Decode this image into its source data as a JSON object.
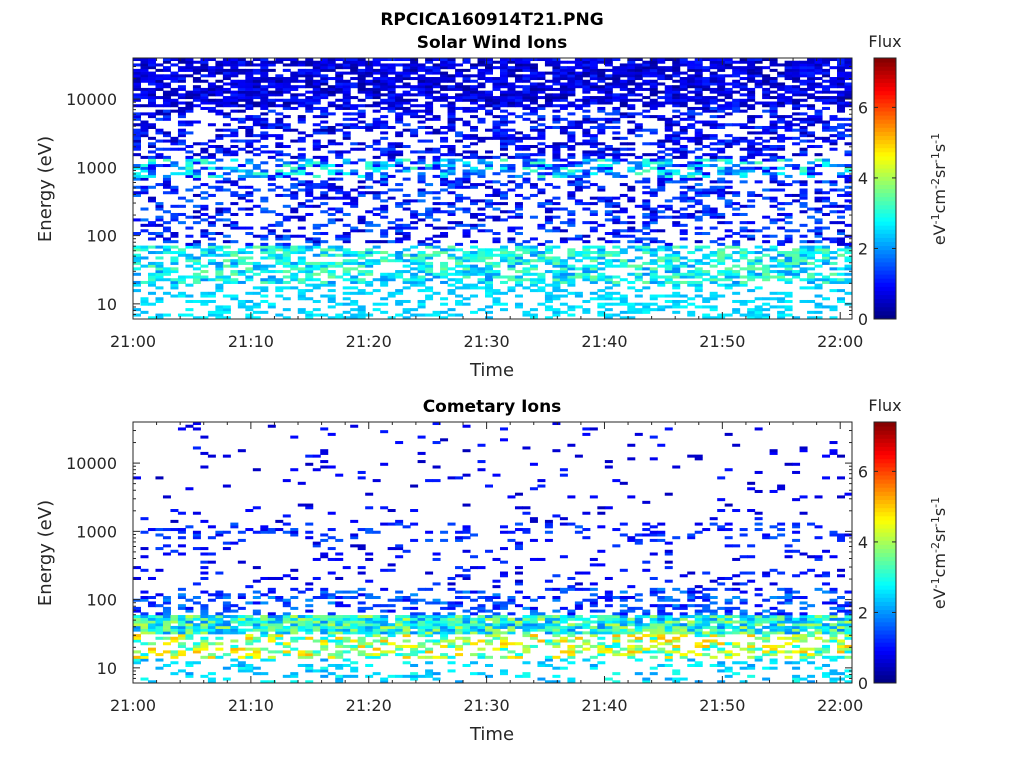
{
  "figure": {
    "title": "RPCICA160914T21.PNG"
  },
  "chart_data": [
    {
      "type": "heatmap",
      "title": "Solar Wind Ions",
      "xlabel": "Time",
      "ylabel": "Energy (eV)",
      "x_ticks": [
        "21:00",
        "21:10",
        "21:20",
        "21:30",
        "21:40",
        "21:50",
        "22:00"
      ],
      "y_ticks": [
        "10",
        "100",
        "1000",
        "10000"
      ],
      "y_scale": "log",
      "xlim": [
        "21:00",
        "22:01"
      ],
      "ylim": [
        6,
        40000
      ],
      "colorbar": {
        "title": "Flux",
        "label": "eV-1cm-2sr-1s-1",
        "range": [
          0,
          7.4
        ],
        "ticks": [
          "0",
          "2",
          "4",
          "6"
        ]
      }
    },
    {
      "type": "heatmap",
      "title": "Cometary Ions",
      "xlabel": "Time",
      "ylabel": "Energy (eV)",
      "x_ticks": [
        "21:00",
        "21:10",
        "21:20",
        "21:30",
        "21:40",
        "21:50",
        "22:00"
      ],
      "y_ticks": [
        "10",
        "100",
        "1000",
        "10000"
      ],
      "y_scale": "log",
      "xlim": [
        "21:00",
        "22:01"
      ],
      "ylim": [
        6,
        40000
      ],
      "colorbar": {
        "title": "Flux",
        "label": "eV-1cm-2sr-1s-1",
        "range": [
          0,
          7.4
        ],
        "ticks": [
          "0",
          "2",
          "4",
          "6"
        ]
      }
    }
  ]
}
